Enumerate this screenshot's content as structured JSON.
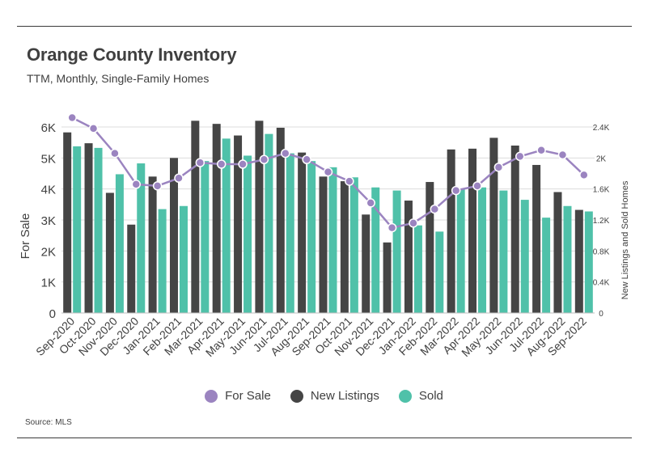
{
  "title": "Orange County Inventory",
  "subtitle": "TTM, Monthly, Single-Family Homes",
  "source": "Source:  MLS",
  "colors": {
    "for_sale": "#9b84c0",
    "new_listings": "#454545",
    "sold": "#4fc1a9",
    "grid": "#dcdcdc",
    "text": "#404040"
  },
  "chart_data": {
    "type": "bar",
    "categories": [
      "Sep-2020",
      "Oct-2020",
      "Nov-2020",
      "Dec-2020",
      "Jan-2021",
      "Feb-2021",
      "Mar-2021",
      "Apr-2021",
      "May-2021",
      "Jun-2021",
      "Jul-2021",
      "Aug-2021",
      "Sep-2021",
      "Oct-2021",
      "Nov-2021",
      "Dec-2021",
      "Jan-2022",
      "Feb-2022",
      "Mar-2022",
      "Apr-2022",
      "May-2022",
      "Jun-2022",
      "Jul-2022",
      "Aug-2022",
      "Sep-2022"
    ],
    "ylabel": "For Sale",
    "y2label": "New Listings and Sold Homes",
    "ylim": [
      0,
      6000
    ],
    "y2lim": [
      0,
      2400
    ],
    "yticks": [
      "0",
      "1K",
      "2K",
      "3K",
      "4K",
      "5K",
      "6K"
    ],
    "y2ticks": [
      "0",
      "0.4K",
      "0.8K",
      "1.2K",
      "1.6K",
      "2K",
      "2.4K"
    ],
    "grid": true,
    "legend_position": "bottom",
    "series": [
      {
        "name": "For Sale",
        "type": "line",
        "axis": "left",
        "values": [
          6300,
          5950,
          5150,
          4150,
          4100,
          4350,
          4850,
          4800,
          4800,
          4950,
          5150,
          4950,
          4550,
          4250,
          3550,
          2750,
          2900,
          3350,
          3950,
          4100,
          4700,
          5050,
          5250,
          5100,
          4450
        ]
      },
      {
        "name": "New Listings",
        "type": "bar",
        "axis": "right",
        "values": [
          2330,
          2190,
          1550,
          1140,
          1760,
          2000,
          2480,
          2440,
          2290,
          2480,
          2390,
          2070,
          1760,
          1700,
          1270,
          910,
          1450,
          1690,
          2110,
          2120,
          2260,
          2160,
          1910,
          1560,
          1330
        ]
      },
      {
        "name": "Sold",
        "type": "bar",
        "axis": "right",
        "values": [
          2150,
          2130,
          1790,
          1930,
          1340,
          1380,
          1960,
          2250,
          2030,
          2310,
          2060,
          1960,
          1880,
          1750,
          1620,
          1580,
          1130,
          1050,
          1600,
          1620,
          1580,
          1460,
          1230,
          1380,
          1310
        ]
      }
    ]
  }
}
